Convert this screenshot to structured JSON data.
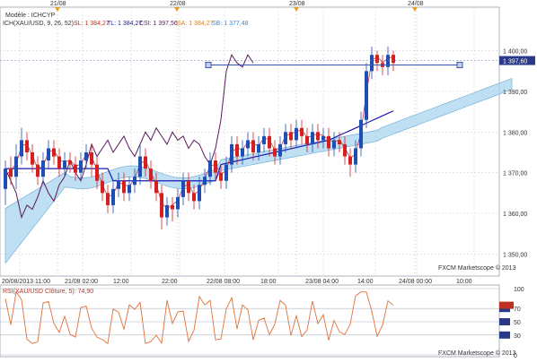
{
  "chart_data": [
    {
      "type": "candlestick",
      "header": {
        "model": "Modèle : ICHCYP",
        "ichimoku": "ICH(XAU/USD, 9, 26, 52) -",
        "sl": "SL: 1 384,27",
        "tl": "TL: 1 384,27",
        "csi": "CSI: 1 397,56",
        "sa": "SA: 1 384,27",
        "sb": "SB: 1 377,48"
      },
      "top_dates": [
        "21/08",
        "22/08",
        "23/08",
        "24/08"
      ],
      "x_ticks": [
        "20/08/2013 11:00",
        "21/08 02:00",
        "12:00",
        "22:00",
        "22/08 08:00",
        "18:00",
        "23/08 04:00",
        "14:00",
        "24/08 00:00",
        "10:00"
      ],
      "y_ticks": [
        "1 400,00",
        "1 390,00",
        "1 380,00",
        "1 370,00",
        "1 360,00",
        "1 350,00"
      ],
      "ylim": [
        1345,
        1405
      ],
      "current_price": "1 397,60",
      "watermark": "FXCM Marketscope © 2013",
      "candles": [
        [
          1366,
          1371,
          1362,
          1373
        ],
        [
          1371,
          1369,
          1367,
          1374
        ],
        [
          1369,
          1374,
          1366,
          1377
        ],
        [
          1374,
          1378,
          1372,
          1381
        ],
        [
          1378,
          1375,
          1373,
          1380
        ],
        [
          1375,
          1372,
          1370,
          1377
        ],
        [
          1372,
          1369,
          1367,
          1374
        ],
        [
          1369,
          1373,
          1367,
          1375
        ],
        [
          1373,
          1376,
          1371,
          1378
        ],
        [
          1376,
          1374,
          1372,
          1378
        ],
        [
          1374,
          1371,
          1369,
          1376
        ],
        [
          1371,
          1373,
          1369,
          1375
        ],
        [
          1373,
          1372,
          1370,
          1375
        ],
        [
          1372,
          1370,
          1368,
          1374
        ],
        [
          1370,
          1373,
          1368,
          1375
        ],
        [
          1373,
          1375,
          1371,
          1377
        ],
        [
          1375,
          1372,
          1369,
          1377
        ],
        [
          1372,
          1368,
          1366,
          1374
        ],
        [
          1368,
          1365,
          1363,
          1370
        ],
        [
          1365,
          1362,
          1360,
          1367
        ],
        [
          1362,
          1366,
          1360,
          1368
        ],
        [
          1366,
          1368,
          1364,
          1370
        ],
        [
          1368,
          1365,
          1363,
          1370
        ],
        [
          1365,
          1367,
          1363,
          1369
        ],
        [
          1367,
          1369,
          1365,
          1371
        ],
        [
          1369,
          1374,
          1367,
          1377
        ],
        [
          1374,
          1371,
          1369,
          1376
        ],
        [
          1371,
          1368,
          1366,
          1373
        ],
        [
          1368,
          1365,
          1363,
          1370
        ],
        [
          1365,
          1359,
          1356,
          1367
        ],
        [
          1359,
          1362,
          1357,
          1364
        ],
        [
          1362,
          1361,
          1358,
          1364
        ],
        [
          1361,
          1364,
          1359,
          1366
        ],
        [
          1364,
          1368,
          1362,
          1370
        ],
        [
          1368,
          1365,
          1363,
          1370
        ],
        [
          1365,
          1363,
          1361,
          1367
        ],
        [
          1363,
          1367,
          1361,
          1369
        ],
        [
          1367,
          1369,
          1365,
          1371
        ],
        [
          1369,
          1373,
          1367,
          1375
        ],
        [
          1373,
          1370,
          1368,
          1375
        ],
        [
          1370,
          1368,
          1366,
          1372
        ],
        [
          1368,
          1372,
          1366,
          1374
        ],
        [
          1372,
          1377,
          1370,
          1379
        ],
        [
          1377,
          1374,
          1372,
          1379
        ],
        [
          1374,
          1376,
          1372,
          1378
        ],
        [
          1376,
          1378,
          1374,
          1380
        ],
        [
          1378,
          1375,
          1373,
          1380
        ],
        [
          1375,
          1377,
          1373,
          1379
        ],
        [
          1377,
          1379,
          1375,
          1381
        ],
        [
          1379,
          1376,
          1374,
          1381
        ],
        [
          1376,
          1374,
          1372,
          1378
        ],
        [
          1374,
          1377,
          1372,
          1379
        ],
        [
          1377,
          1380,
          1375,
          1382
        ],
        [
          1380,
          1378,
          1376,
          1382
        ],
        [
          1378,
          1381,
          1376,
          1383
        ],
        [
          1381,
          1379,
          1377,
          1383
        ],
        [
          1379,
          1377,
          1375,
          1381
        ],
        [
          1377,
          1380,
          1375,
          1382
        ],
        [
          1380,
          1378,
          1376,
          1382
        ],
        [
          1378,
          1379,
          1376,
          1381
        ],
        [
          1379,
          1376,
          1374,
          1381
        ],
        [
          1376,
          1378,
          1374,
          1380
        ],
        [
          1378,
          1377,
          1375,
          1380
        ],
        [
          1377,
          1374,
          1372,
          1379
        ],
        [
          1374,
          1372,
          1369,
          1376
        ],
        [
          1372,
          1376,
          1370,
          1378
        ],
        [
          1376,
          1383,
          1374,
          1385
        ],
        [
          1383,
          1395,
          1381,
          1397
        ],
        [
          1395,
          1399,
          1393,
          1401
        ],
        [
          1399,
          1397,
          1395,
          1400
        ],
        [
          1397,
          1396,
          1394,
          1399
        ],
        [
          1396,
          1399,
          1394,
          1401
        ],
        [
          1399,
          1397,
          1395,
          1400
        ]
      ],
      "indicator": {
        "label": "RSI(XAU/USD Clôture, 5): 74,90",
        "levels": [
          "100",
          "70",
          "50",
          "30",
          "0"
        ],
        "last": "74,90"
      }
    }
  ],
  "colors": {
    "up": "#1f4fb4",
    "down": "#d42020",
    "cloud_bull": "#aad4ee",
    "cloud_bear": "#f5c08a",
    "kijun": "#1a1ab4",
    "tenkan": "#d43030",
    "chikou": "#5a1a5a",
    "price_line": "#3a55b4",
    "rsi": "#e0703a",
    "date_marker": "#e8a020"
  }
}
